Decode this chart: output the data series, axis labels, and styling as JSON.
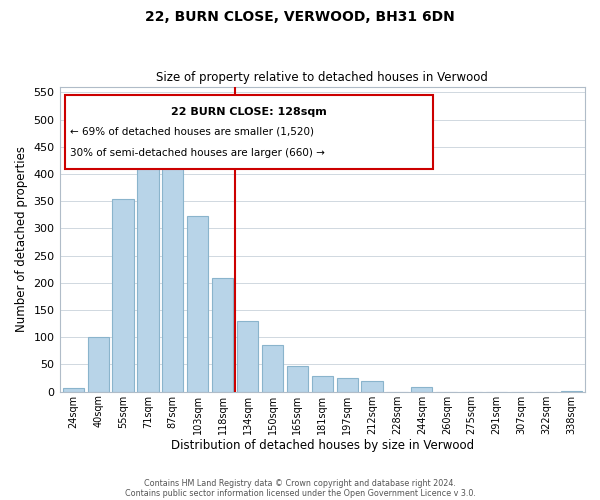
{
  "title": "22, BURN CLOSE, VERWOOD, BH31 6DN",
  "subtitle": "Size of property relative to detached houses in Verwood",
  "xlabel": "Distribution of detached houses by size in Verwood",
  "ylabel": "Number of detached properties",
  "footnote1": "Contains HM Land Registry data © Crown copyright and database right 2024.",
  "footnote2": "Contains public sector information licensed under the Open Government Licence v 3.0.",
  "bar_labels": [
    "24sqm",
    "40sqm",
    "55sqm",
    "71sqm",
    "87sqm",
    "103sqm",
    "118sqm",
    "134sqm",
    "150sqm",
    "165sqm",
    "181sqm",
    "197sqm",
    "212sqm",
    "228sqm",
    "244sqm",
    "260sqm",
    "275sqm",
    "291sqm",
    "307sqm",
    "322sqm",
    "338sqm"
  ],
  "bar_heights": [
    7,
    101,
    354,
    443,
    423,
    323,
    209,
    130,
    86,
    48,
    29,
    25,
    20,
    0,
    9,
    0,
    0,
    0,
    0,
    0,
    2
  ],
  "bar_color": "#b8d4e8",
  "bar_edge_color": "#8ab4cc",
  "vline_color": "#cc0000",
  "ylim": [
    0,
    560
  ],
  "yticks": [
    0,
    50,
    100,
    150,
    200,
    250,
    300,
    350,
    400,
    450,
    500,
    550
  ],
  "annotation_title": "22 BURN CLOSE: 128sqm",
  "annotation_line1": "← 69% of detached houses are smaller (1,520)",
  "annotation_line2": "30% of semi-detached houses are larger (660) →",
  "grid_color": "#d0d8e0",
  "spine_color": "#b0bcc8"
}
